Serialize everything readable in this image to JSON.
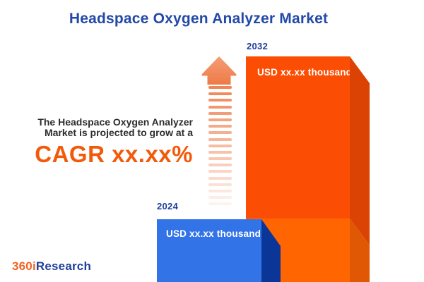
{
  "title": "Headspace Oxygen Analyzer Market",
  "description": {
    "line1": "The Headspace Oxygen Analyzer",
    "line2": "Market is projected to grow at a",
    "cagr": "CAGR xx.xx%"
  },
  "chart": {
    "bars": [
      {
        "year": "2024",
        "value_label": "USD xx.xx thousand"
      },
      {
        "year": "2032",
        "value_label": "USD xx.xx thousand"
      }
    ]
  },
  "chart_data": {
    "type": "bar",
    "categories": [
      "2024",
      "2032"
    ],
    "values": [
      null,
      null
    ],
    "value_labels": [
      "USD xx.xx thousand",
      "USD xx.xx thousand"
    ],
    "title": "Headspace Oxygen Analyzer Market",
    "annotation": "The Headspace Oxygen Analyzer Market is projected to grow at a CAGR xx.xx%",
    "bar_colors": [
      "#3273E8",
      "#FB4E04"
    ],
    "legend": "none",
    "grid": false,
    "notes": "3D style bars, values masked as xx.xx placeholders; fading striped growth arrow between annotation and 2032 bar"
  },
  "logo": {
    "prefix": "360i",
    "suffix": "Research"
  },
  "colors": {
    "title_blue": "#2349A8",
    "year_label_navy": "#21409A",
    "text_dark": "#2D2D2D",
    "cagr_orange": "#F25A0A",
    "bar_2024_face": "#3273E8",
    "bar_2024_side": "#0B3697",
    "bar_2032_face_top": "#FB4E04",
    "bar_2032_face_bottom": "#FF6602",
    "bar_2032_side_top": "#DB4304",
    "bar_2032_side_bottom": "#E05704",
    "arrow_head": "#F08556",
    "logo_orange": "#F26322",
    "logo_navy": "#21409A",
    "background": "#FFFFFF"
  }
}
